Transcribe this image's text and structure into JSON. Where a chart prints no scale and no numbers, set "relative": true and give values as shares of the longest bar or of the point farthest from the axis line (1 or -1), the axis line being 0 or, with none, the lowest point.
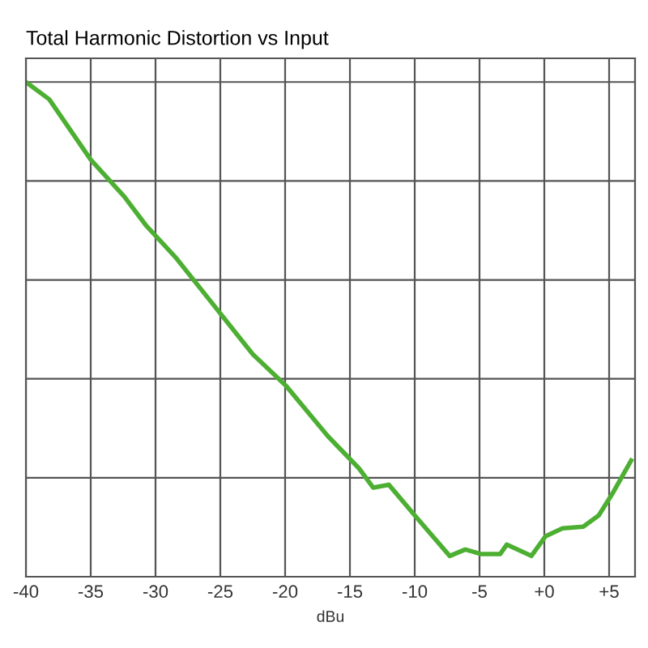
{
  "chart_data": {
    "type": "line",
    "title": "Total Harmonic Distortion vs Input",
    "xlabel": "dBu",
    "relative": true,
    "x": [
      -40,
      -38.2,
      -35,
      -32.4,
      -30.7,
      -28.4,
      -24.9,
      -22.5,
      -19.9,
      -16.7,
      -14.3,
      -13.2,
      -12.0,
      -10,
      -7.3,
      -6.1,
      -4.9,
      -3.4,
      -2.9,
      -1.0,
      0.1,
      1.4,
      3.0,
      4.2,
      5.3,
      6.7
    ],
    "series": [
      {
        "color": "#4caf32",
        "values": [
          1.0,
          0.965,
          0.843,
          0.768,
          0.709,
          0.644,
          0.529,
          0.45,
          0.385,
          0.284,
          0.219,
          0.18,
          0.186,
          0.124,
          0.042,
          0.055,
          0.046,
          0.046,
          0.065,
          0.042,
          0.082,
          0.098,
          0.101,
          0.124,
          0.17,
          0.235
        ]
      }
    ],
    "xlim": [
      -40,
      7
    ],
    "xticks": [
      -40,
      -35,
      -30,
      -25,
      -20,
      -15,
      -10,
      -5,
      {
        "value": 0,
        "label": "+0"
      },
      {
        "value": 5,
        "label": "+5"
      }
    ],
    "grid": true,
    "tick_labels": "x",
    "marker": "none",
    "line_style": "solid",
    "legend": false
  }
}
